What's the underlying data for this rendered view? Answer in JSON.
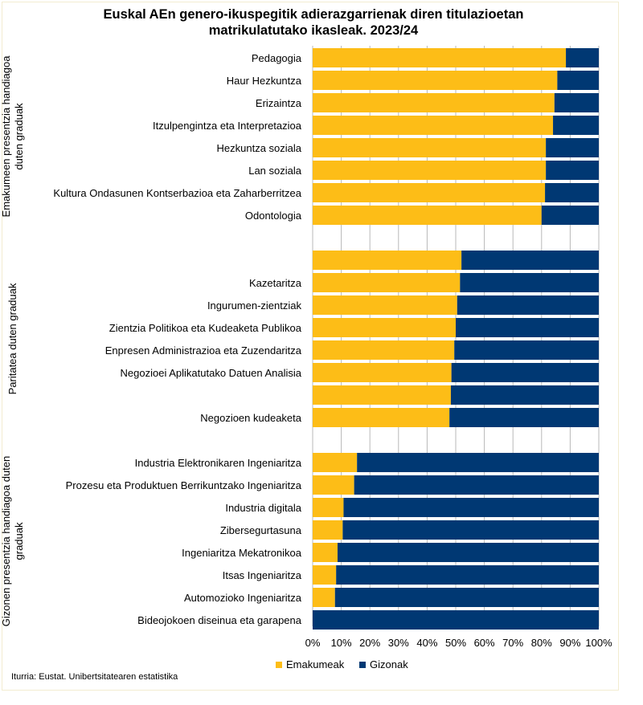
{
  "title_line1": "Euskal AEn genero-ikuspegitik adierazgarrienak diren titulazioetan",
  "title_line2": "matrikulatutako ikasleak. 2023/24",
  "source": "Iturria: Eustat. Unibertsitatearen estatistika",
  "colors": {
    "women": "#FDBD17",
    "men": "#003873",
    "grid": "#b8b8b8"
  },
  "legend": {
    "women": "Emakumeak",
    "men": "Gizonak"
  },
  "chart_data": {
    "type": "bar",
    "orientation": "horizontal",
    "stacked": true,
    "percent": true,
    "title": "Euskal AEn genero-ikuspegitik adierazgarrienak diren titulazioetan matrikulatutako ikasleak. 2023/24",
    "xlim": [
      0,
      100
    ],
    "xticks": [
      "0%",
      "10%",
      "20%",
      "30%",
      "40%",
      "50%",
      "60%",
      "70%",
      "80%",
      "90%",
      "100%"
    ],
    "grid": true,
    "legend_position": "bottom",
    "series_names": [
      "Emakumeak",
      "Gizonak"
    ],
    "groups": [
      {
        "label": "Emakumeen presentzia handiagoa duten graduak",
        "categories": [
          "Pedagogia",
          "Haur Hezkuntza",
          "Erizaintza",
          "Itzulpengintza eta Interpretazioa",
          "Hezkuntza soziala",
          "Lan soziala",
          "Kultura Ondasunen Kontserbazioa eta Zaharberritzea",
          "Odontologia"
        ],
        "women": [
          88.5,
          85.5,
          84.5,
          84.0,
          81.5,
          81.5,
          81.2,
          80.0
        ]
      },
      {
        "label": "Paritatea duten graduak",
        "categories": [
          "",
          "Kazetaritza",
          "Ingurumen-zientziak",
          "Zientzia Politikoa eta Kudeaketa Publikoa",
          "Enpresen Administrazioa eta Zuzendaritza",
          "Negozioei Aplikatutako Datuen Analisia",
          "",
          "Negozioen kudeaketa"
        ],
        "women": [
          52.0,
          51.5,
          50.5,
          50.0,
          49.5,
          48.5,
          48.3,
          47.8
        ]
      },
      {
        "label": "Gizonen presentzia handiagoa duten graduak",
        "categories": [
          "Industria Elektronikaren Ingeniaritza",
          "Prozesu eta Produktuen Berrikuntzako Ingeniaritza",
          "Industria digitala",
          "Zibersegurtasuna",
          "Ingeniaritza Mekatronikoa",
          "Itsas Ingeniaritza",
          "Automozioko Ingeniaritza",
          "Bideojokoen diseinua eta garapena"
        ],
        "women": [
          15.5,
          14.5,
          10.8,
          10.5,
          8.7,
          8.2,
          7.8,
          0.0
        ]
      }
    ]
  }
}
